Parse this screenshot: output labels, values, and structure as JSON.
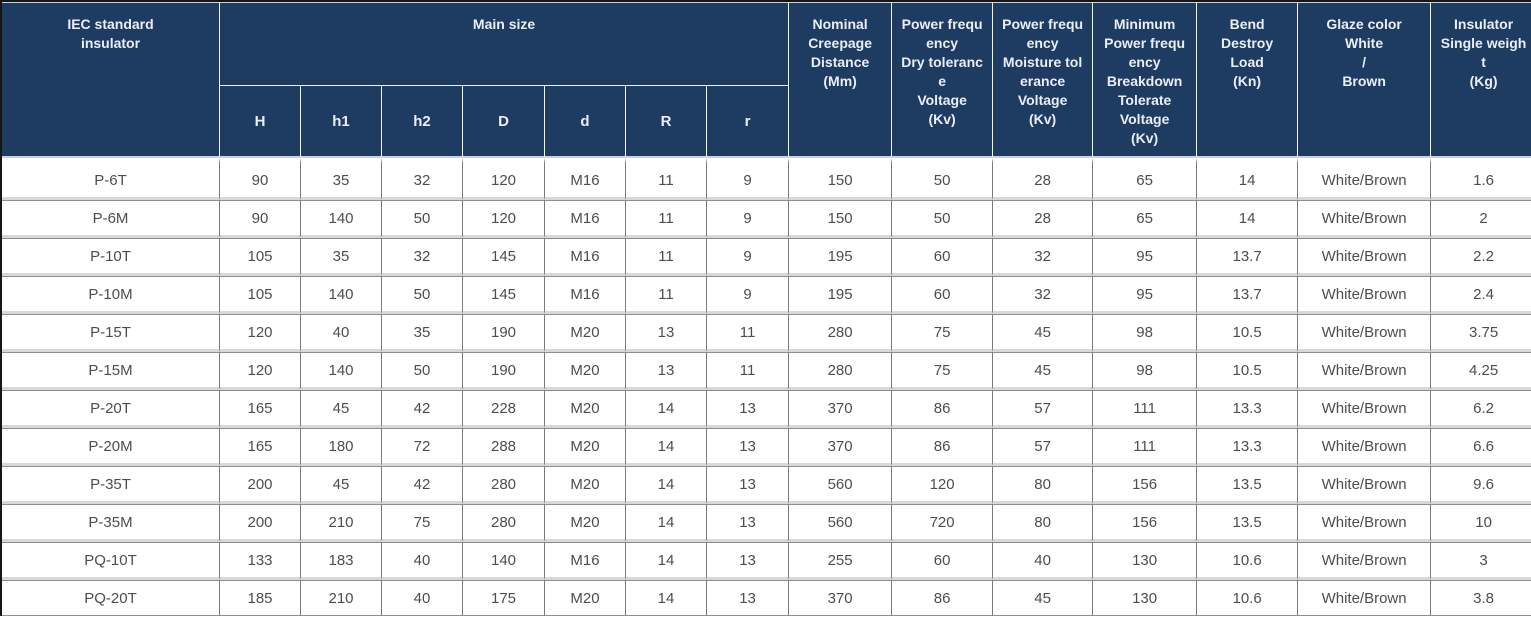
{
  "table": {
    "header": {
      "iec": "IEC standard\ninsulator",
      "main_size": "Main size",
      "sub_columns": [
        "H",
        "h1",
        "h2",
        "D",
        "d",
        "R",
        "r"
      ],
      "nominal_creepage": "Nominal\nCreepage\nDistance\n(Mm)",
      "dry_tolerance": "Power frequ\nency\nDry toleranc\ne\nVoltage\n(Kv)",
      "moisture_tolerance": "Power frequ\nency\nMoisture tol\nerance\nVoltage\n(Kv)",
      "min_breakdown": "Minimum\nPower frequ\nency\nBreakdown\nTolerate\nVoltage\n(Kv)",
      "bend_load": "Bend\nDestroy\nLoad\n(Kn)",
      "glaze_color": "Glaze color\nWhite\n/\nBrown",
      "single_weight": "Insulator\nSingle weigh\nt\n(Kg)"
    },
    "rows": [
      [
        "P-6T",
        "90",
        "35",
        "32",
        "120",
        "M16",
        "11",
        "9",
        "150",
        "50",
        "28",
        "65",
        "14",
        "White/Brown",
        "1.6"
      ],
      [
        "P-6M",
        "90",
        "140",
        "50",
        "120",
        "M16",
        "11",
        "9",
        "150",
        "50",
        "28",
        "65",
        "14",
        "White/Brown",
        "2"
      ],
      [
        "P-10T",
        "105",
        "35",
        "32",
        "145",
        "M16",
        "11",
        "9",
        "195",
        "60",
        "32",
        "95",
        "13.7",
        "White/Brown",
        "2.2"
      ],
      [
        "P-10M",
        "105",
        "140",
        "50",
        "145",
        "M16",
        "11",
        "9",
        "195",
        "60",
        "32",
        "95",
        "13.7",
        "White/Brown",
        "2.4"
      ],
      [
        "P-15T",
        "120",
        "40",
        "35",
        "190",
        "M20",
        "13",
        "11",
        "280",
        "75",
        "45",
        "98",
        "10.5",
        "White/Brown",
        "3.75"
      ],
      [
        "P-15M",
        "120",
        "140",
        "50",
        "190",
        "M20",
        "13",
        "11",
        "280",
        "75",
        "45",
        "98",
        "10.5",
        "White/Brown",
        "4.25"
      ],
      [
        "P-20T",
        "165",
        "45",
        "42",
        "228",
        "M20",
        "14",
        "13",
        "370",
        "86",
        "57",
        "111",
        "13.3",
        "White/Brown",
        "6.2"
      ],
      [
        "P-20M",
        "165",
        "180",
        "72",
        "288",
        "M20",
        "14",
        "13",
        "370",
        "86",
        "57",
        "111",
        "13.3",
        "White/Brown",
        "6.6"
      ],
      [
        "P-35T",
        "200",
        "45",
        "42",
        "280",
        "M20",
        "14",
        "13",
        "560",
        "120",
        "80",
        "156",
        "13.5",
        "White/Brown",
        "9.6"
      ],
      [
        "P-35M",
        "200",
        "210",
        "75",
        "280",
        "M20",
        "14",
        "13",
        "560",
        "720",
        "80",
        "156",
        "13.5",
        "White/Brown",
        "10"
      ],
      [
        "PQ-10T",
        "133",
        "183",
        "40",
        "140",
        "M16",
        "14",
        "13",
        "255",
        "60",
        "40",
        "130",
        "10.6",
        "White/Brown",
        "3"
      ],
      [
        "PQ-20T",
        "185",
        "210",
        "40",
        "175",
        "M20",
        "14",
        "13",
        "370",
        "86",
        "45",
        "130",
        "10.6",
        "White/Brown",
        "3.8"
      ]
    ],
    "colors": {
      "header_bg": "#1e3c61",
      "header_text": "#eaeef4",
      "body_text": "#4d4d4d",
      "border_dark": "#7a7a7a",
      "border_light": "#d8d8d8"
    }
  }
}
